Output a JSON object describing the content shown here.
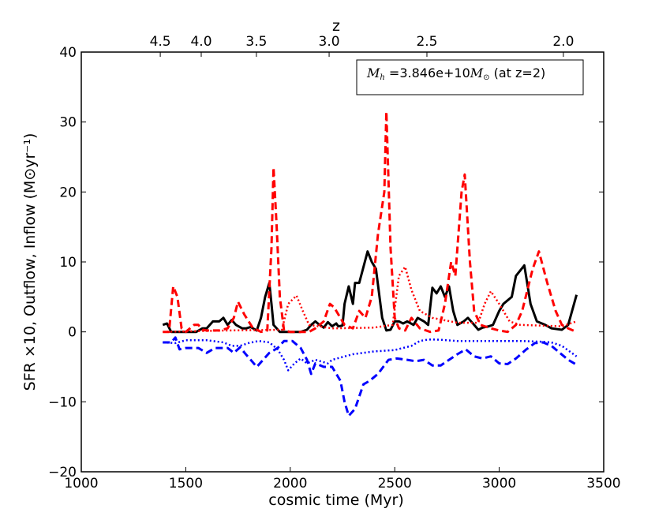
{
  "chart_data": {
    "type": "line",
    "xlabel": "cosmic time (Myr)",
    "ylabel": "SFR ×10, Outflow, Inflow  (M⊙yr⁻¹)",
    "top_axis_label": "z",
    "xlim": [
      1000,
      3500
    ],
    "ylim": [
      -20,
      40
    ],
    "xticks": [
      1000,
      1500,
      2000,
      2500,
      3000,
      3500
    ],
    "yticks": [
      -20,
      -10,
      0,
      10,
      20,
      30,
      40
    ],
    "top_ticks": [
      {
        "label": "4.5",
        "t": 1378
      },
      {
        "label": "4.0",
        "t": 1574
      },
      {
        "label": "3.5",
        "t": 1838
      },
      {
        "label": "3.0",
        "t": 2186
      },
      {
        "label": "2.5",
        "t": 2654
      },
      {
        "label": "2.0",
        "t": 3307
      }
    ],
    "grid": false,
    "legend_placement": "top-right",
    "annotation": {
      "prefix": "M",
      "sub": "h",
      "text": " =3.846e+10",
      "unit": "M",
      "unit_sub": "⊙",
      "suffix": " (at z=2)"
    },
    "series": [
      {
        "style": "solid",
        "color": "#000000",
        "points": [
          [
            1390,
            1
          ],
          [
            1410,
            1.2
          ],
          [
            1430,
            0
          ],
          [
            1500,
            0
          ],
          [
            1550,
            0
          ],
          [
            1580,
            0.5
          ],
          [
            1600,
            0.5
          ],
          [
            1630,
            1.5
          ],
          [
            1660,
            1.5
          ],
          [
            1680,
            2
          ],
          [
            1700,
            1
          ],
          [
            1720,
            1.7
          ],
          [
            1740,
            1
          ],
          [
            1770,
            0.5
          ],
          [
            1790,
            0.5
          ],
          [
            1810,
            0.7
          ],
          [
            1840,
            0.2
          ],
          [
            1860,
            2
          ],
          [
            1880,
            5
          ],
          [
            1900,
            7
          ],
          [
            1910,
            4
          ],
          [
            1920,
            1
          ],
          [
            1950,
            0
          ],
          [
            2050,
            0
          ],
          [
            2080,
            0.3
          ],
          [
            2100,
            1
          ],
          [
            2120,
            1.5
          ],
          [
            2140,
            1
          ],
          [
            2160,
            0.6
          ],
          [
            2180,
            1.4
          ],
          [
            2200,
            0.8
          ],
          [
            2220,
            1.2
          ],
          [
            2230,
            0.8
          ],
          [
            2250,
            0.9
          ],
          [
            2260,
            4
          ],
          [
            2280,
            6.5
          ],
          [
            2300,
            4
          ],
          [
            2310,
            7
          ],
          [
            2330,
            7
          ],
          [
            2370,
            11.5
          ],
          [
            2390,
            10
          ],
          [
            2410,
            9
          ],
          [
            2440,
            2
          ],
          [
            2460,
            0.2
          ],
          [
            2480,
            0.3
          ],
          [
            2500,
            1.5
          ],
          [
            2520,
            1.5
          ],
          [
            2540,
            1.2
          ],
          [
            2560,
            1.5
          ],
          [
            2590,
            1
          ],
          [
            2610,
            2
          ],
          [
            2640,
            1.5
          ],
          [
            2660,
            1
          ],
          [
            2680,
            6.3
          ],
          [
            2700,
            5.5
          ],
          [
            2720,
            6.5
          ],
          [
            2740,
            5
          ],
          [
            2760,
            6.5
          ],
          [
            2780,
            3
          ],
          [
            2800,
            1
          ],
          [
            2830,
            1.5
          ],
          [
            2850,
            2
          ],
          [
            2880,
            1
          ],
          [
            2900,
            0.3
          ],
          [
            2920,
            0.6
          ],
          [
            2950,
            0.8
          ],
          [
            2970,
            1
          ],
          [
            3000,
            3
          ],
          [
            3020,
            4
          ],
          [
            3060,
            5
          ],
          [
            3080,
            8
          ],
          [
            3120,
            9.5
          ],
          [
            3150,
            4
          ],
          [
            3180,
            1.5
          ],
          [
            3220,
            1
          ],
          [
            3250,
            0.5
          ],
          [
            3300,
            0.3
          ],
          [
            3330,
            1
          ],
          [
            3370,
            5.3
          ]
        ]
      },
      {
        "style": "dashed",
        "color": "#ff0000",
        "points": [
          [
            1390,
            0
          ],
          [
            1420,
            0
          ],
          [
            1440,
            6.5
          ],
          [
            1460,
            5
          ],
          [
            1480,
            0.5
          ],
          [
            1500,
            0
          ],
          [
            1540,
            1
          ],
          [
            1560,
            1
          ],
          [
            1580,
            0.3
          ],
          [
            1600,
            0.2
          ],
          [
            1660,
            0.2
          ],
          [
            1700,
            0.5
          ],
          [
            1730,
            2
          ],
          [
            1750,
            4.3
          ],
          [
            1780,
            2.5
          ],
          [
            1820,
            0.6
          ],
          [
            1860,
            0
          ],
          [
            1890,
            0.2
          ],
          [
            1910,
            12
          ],
          [
            1920,
            23.5
          ],
          [
            1935,
            15
          ],
          [
            1950,
            5
          ],
          [
            1970,
            0.2
          ],
          [
            2000,
            0
          ],
          [
            2090,
            0
          ],
          [
            2120,
            0.5
          ],
          [
            2160,
            1.5
          ],
          [
            2190,
            4
          ],
          [
            2210,
            3.5
          ],
          [
            2260,
            1
          ],
          [
            2300,
            0.5
          ],
          [
            2330,
            3
          ],
          [
            2360,
            2
          ],
          [
            2390,
            5
          ],
          [
            2420,
            14
          ],
          [
            2450,
            20
          ],
          [
            2460,
            31.5
          ],
          [
            2480,
            12
          ],
          [
            2500,
            2
          ],
          [
            2520,
            0.5
          ],
          [
            2550,
            0.2
          ],
          [
            2580,
            2
          ],
          [
            2620,
            0.5
          ],
          [
            2670,
            0
          ],
          [
            2710,
            0.2
          ],
          [
            2740,
            4
          ],
          [
            2770,
            10
          ],
          [
            2790,
            8
          ],
          [
            2820,
            20
          ],
          [
            2835,
            22.5
          ],
          [
            2860,
            10
          ],
          [
            2880,
            3
          ],
          [
            2910,
            1
          ],
          [
            2960,
            0.5
          ],
          [
            3000,
            0.2
          ],
          [
            3040,
            0
          ],
          [
            3080,
            1
          ],
          [
            3110,
            3
          ],
          [
            3160,
            9
          ],
          [
            3190,
            11.5
          ],
          [
            3230,
            7
          ],
          [
            3270,
            3
          ],
          [
            3300,
            1
          ],
          [
            3330,
            0.5
          ],
          [
            3370,
            0
          ]
        ]
      },
      {
        "style": "dotted",
        "color": "#ff0000",
        "points": [
          [
            1390,
            0
          ],
          [
            1700,
            0.2
          ],
          [
            1960,
            0.3
          ],
          [
            1990,
            4
          ],
          [
            2030,
            5.2
          ],
          [
            2060,
            3
          ],
          [
            2090,
            1
          ],
          [
            2200,
            0.5
          ],
          [
            2400,
            0.6
          ],
          [
            2490,
            1
          ],
          [
            2520,
            8
          ],
          [
            2550,
            9.3
          ],
          [
            2580,
            6
          ],
          [
            2620,
            3
          ],
          [
            2680,
            2
          ],
          [
            2800,
            1.3
          ],
          [
            2900,
            1.3
          ],
          [
            2930,
            4
          ],
          [
            2960,
            5.8
          ],
          [
            3000,
            4
          ],
          [
            3050,
            1.5
          ],
          [
            3100,
            1
          ],
          [
            3300,
            0.8
          ],
          [
            3370,
            1.5
          ]
        ]
      },
      {
        "style": "dashed",
        "color": "#0000ff",
        "points": [
          [
            1390,
            -1.5
          ],
          [
            1430,
            -1.5
          ],
          [
            1450,
            -0.8
          ],
          [
            1470,
            -2.5
          ],
          [
            1500,
            -2.3
          ],
          [
            1560,
            -2.3
          ],
          [
            1600,
            -3
          ],
          [
            1640,
            -2.3
          ],
          [
            1700,
            -2.3
          ],
          [
            1730,
            -3
          ],
          [
            1760,
            -2.2
          ],
          [
            1790,
            -3.3
          ],
          [
            1840,
            -5
          ],
          [
            1870,
            -4
          ],
          [
            1900,
            -3
          ],
          [
            1940,
            -2.3
          ],
          [
            1970,
            -1.3
          ],
          [
            2010,
            -1.3
          ],
          [
            2050,
            -2.3
          ],
          [
            2080,
            -4
          ],
          [
            2100,
            -6
          ],
          [
            2120,
            -4.5
          ],
          [
            2160,
            -5
          ],
          [
            2200,
            -5
          ],
          [
            2240,
            -7
          ],
          [
            2260,
            -10
          ],
          [
            2280,
            -12
          ],
          [
            2310,
            -11
          ],
          [
            2350,
            -7.5
          ],
          [
            2380,
            -7
          ],
          [
            2420,
            -6
          ],
          [
            2470,
            -4
          ],
          [
            2510,
            -3.8
          ],
          [
            2560,
            -4
          ],
          [
            2600,
            -4.2
          ],
          [
            2640,
            -4
          ],
          [
            2680,
            -4.8
          ],
          [
            2720,
            -4.8
          ],
          [
            2760,
            -4
          ],
          [
            2800,
            -3.2
          ],
          [
            2840,
            -2.5
          ],
          [
            2880,
            -3.5
          ],
          [
            2920,
            -3.8
          ],
          [
            2960,
            -3.5
          ],
          [
            3000,
            -4.5
          ],
          [
            3040,
            -4.6
          ],
          [
            3080,
            -3.8
          ],
          [
            3130,
            -2.5
          ],
          [
            3170,
            -1.6
          ],
          [
            3210,
            -1.5
          ],
          [
            3250,
            -2
          ],
          [
            3290,
            -3
          ],
          [
            3330,
            -4
          ],
          [
            3370,
            -4.7
          ]
        ]
      },
      {
        "style": "dotted",
        "color": "#0000ff",
        "points": [
          [
            1390,
            -1.5
          ],
          [
            1450,
            -1.6
          ],
          [
            1500,
            -1.2
          ],
          [
            1600,
            -1.2
          ],
          [
            1680,
            -1.5
          ],
          [
            1720,
            -2
          ],
          [
            1760,
            -2
          ],
          [
            1800,
            -1.6
          ],
          [
            1850,
            -1.3
          ],
          [
            1900,
            -1.5
          ],
          [
            1940,
            -2.5
          ],
          [
            1970,
            -4
          ],
          [
            1990,
            -5.5
          ],
          [
            2020,
            -4.5
          ],
          [
            2050,
            -3.8
          ],
          [
            2080,
            -4.5
          ],
          [
            2120,
            -4
          ],
          [
            2180,
            -4.5
          ],
          [
            2200,
            -4
          ],
          [
            2300,
            -3.2
          ],
          [
            2400,
            -2.8
          ],
          [
            2500,
            -2.6
          ],
          [
            2580,
            -2
          ],
          [
            2620,
            -1.3
          ],
          [
            2660,
            -1.1
          ],
          [
            2700,
            -1.1
          ],
          [
            2800,
            -1.3
          ],
          [
            3100,
            -1.3
          ],
          [
            3200,
            -1.4
          ],
          [
            3250,
            -1.5
          ],
          [
            3300,
            -2
          ],
          [
            3370,
            -3.5
          ]
        ]
      }
    ]
  }
}
